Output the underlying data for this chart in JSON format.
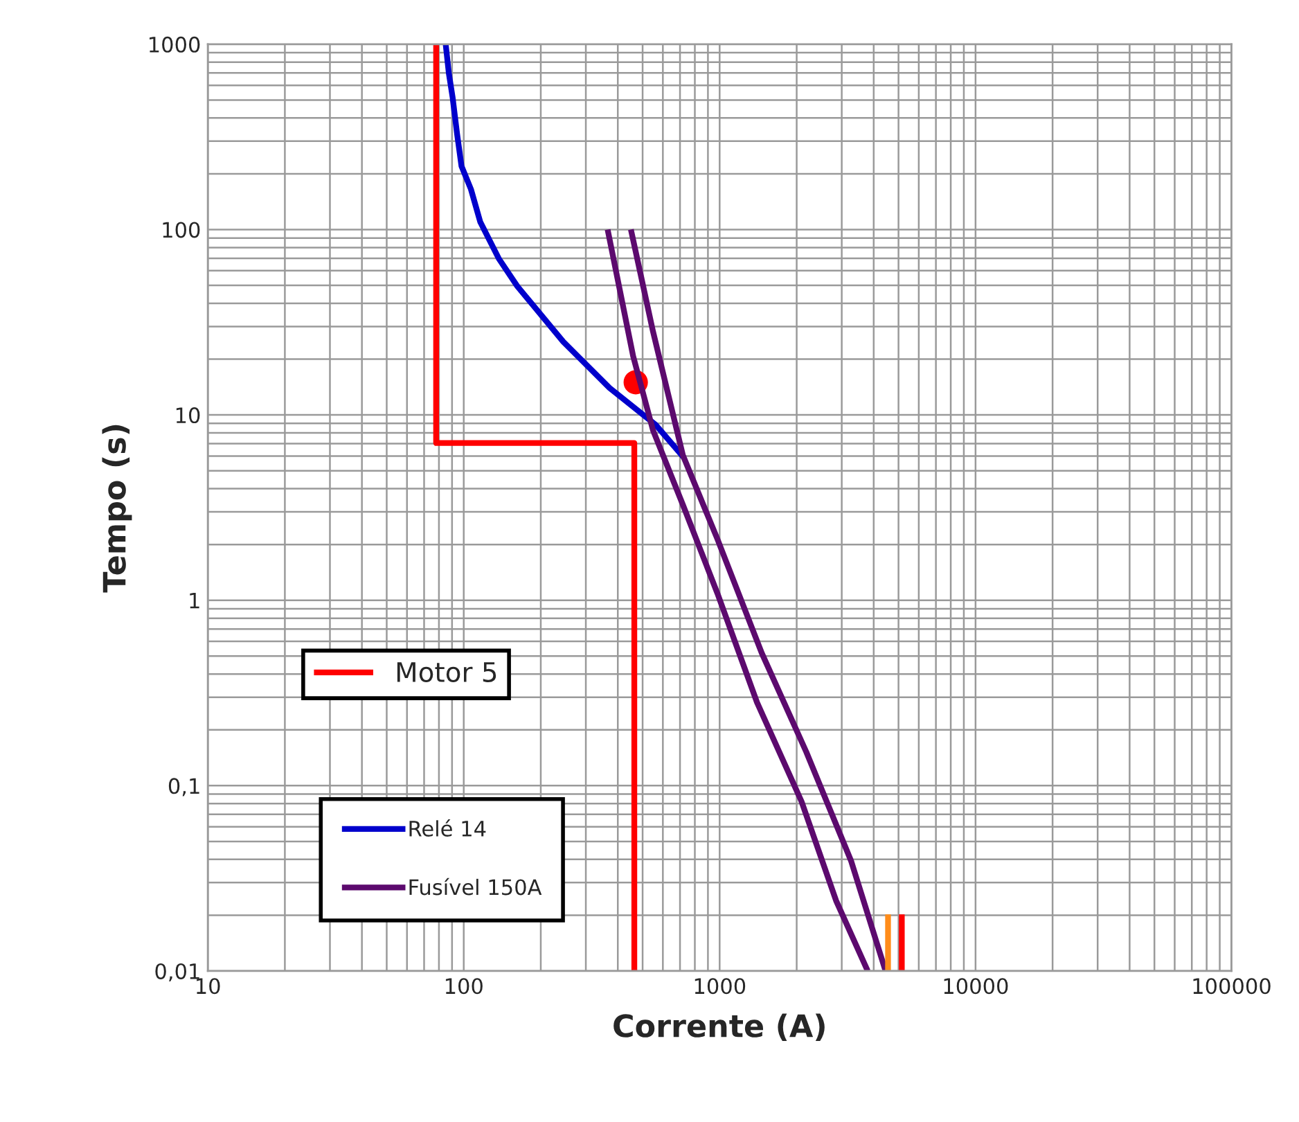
{
  "chart_data": {
    "type": "line",
    "xlabel": "Corrente (A)",
    "ylabel": "Tempo (s)",
    "log": "xy",
    "grid": true,
    "legend": "left",
    "xlim": [
      10,
      100000
    ],
    "ylim": [
      0.01,
      1000
    ],
    "xticks": [
      10,
      100,
      1000,
      10000,
      100000
    ],
    "yticks": [
      {
        "value": 0.01,
        "label": "0,01"
      },
      {
        "value": 0.1,
        "label": "0,1"
      },
      1,
      10,
      100,
      1000
    ],
    "series": [
      {
        "name": "Motor 5",
        "color": "#ff0000",
        "x": [
          78,
          78,
          464,
          464
        ],
        "values": [
          1000,
          7.05,
          7.05,
          0.01
        ]
      },
      {
        "name": "Relé 14",
        "color": "#0000cc",
        "x": [
          85,
          87.5,
          90.4,
          94.2,
          98,
          106.7,
          116,
          137,
          162,
          245,
          371,
          562,
          721
        ],
        "values": [
          1000,
          693,
          520,
          328,
          220,
          165,
          110,
          69.8,
          49.4,
          24.8,
          14,
          8.85,
          5.93
        ]
      },
      {
        "name": "Fusível 150A",
        "color": "#5c0a6e",
        "x": [
          365,
          459,
          549,
          718,
          980,
          1400,
          2090,
          2850,
          3790
        ],
        "values": [
          100,
          20.8,
          8.26,
          3.28,
          1.09,
          0.281,
          0.082,
          0.024,
          0.01
        ]
      },
      {
        "color": "#5c0a6e",
        "x": [
          450,
          549,
          718,
          980,
          1460,
          2180,
          3260,
          4450
        ],
        "values": [
          100,
          28.2,
          6.07,
          2.14,
          0.52,
          0.152,
          0.0394,
          0.01
        ]
      },
      {
        "type": "scatter",
        "color": "#ff0000",
        "x": [
          470
        ],
        "values": [
          15
        ]
      },
      {
        "color": "#ff8c1a",
        "x": [
          4550,
          4550
        ],
        "values": [
          0.0202,
          0.01
        ]
      },
      {
        "color": "#ff0000",
        "x": [
          5150,
          5150
        ],
        "values": [
          0.0202,
          0.01
        ]
      }
    ]
  }
}
